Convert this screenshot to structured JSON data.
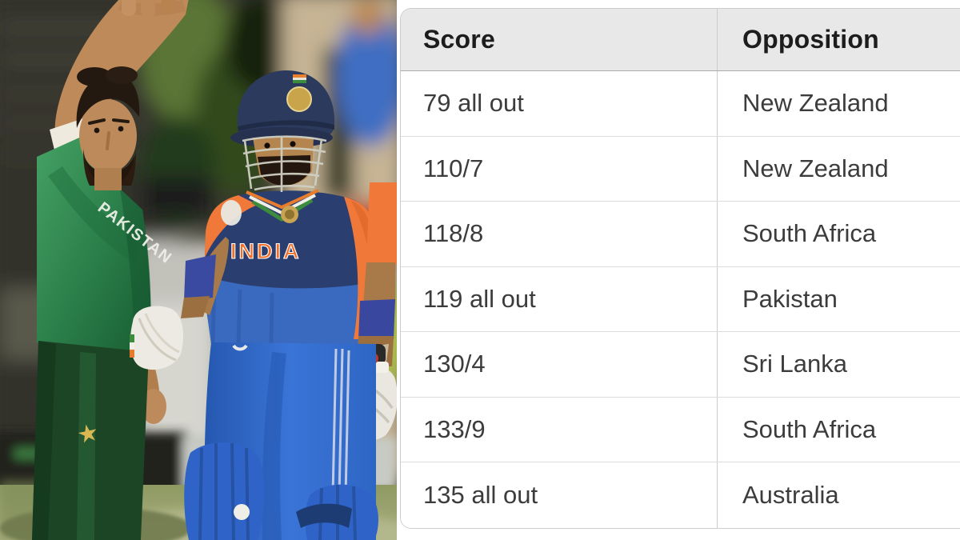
{
  "photo": {
    "alt": "Pakistan fast bowler celebrating with raised arm next to India batter in helmet during a T20 World Cup match",
    "left_player": {
      "team": "Pakistan",
      "jersey_text": "PAKISTAN"
    },
    "right_player": {
      "team": "India",
      "jersey_text": "INDIA"
    }
  },
  "table": {
    "headers": [
      {
        "label": "Score"
      },
      {
        "label": "Opposition"
      }
    ],
    "rows": [
      {
        "score": "79 all out",
        "opposition": "New Zealand"
      },
      {
        "score": "110/7",
        "opposition": "New Zealand"
      },
      {
        "score": "118/8",
        "opposition": "South Africa"
      },
      {
        "score": "119 all out",
        "opposition": "Pakistan"
      },
      {
        "score": "130/4",
        "opposition": "Sri Lanka"
      },
      {
        "score": "133/9",
        "opposition": "South Africa"
      },
      {
        "score": "135 all out",
        "opposition": "Australia"
      }
    ],
    "style": {
      "header_bg": "#e8e8e8",
      "header_text": "#1d1d1d",
      "cell_text": "#3c3c3c",
      "row_bg": "#ffffff",
      "border_color": "#cccccc",
      "header_divider": "#ababab",
      "row_divider": "#dcdcdc"
    }
  },
  "colors": {
    "pakistan_green": "#2f8a50",
    "pakistan_dark_green": "#1c4f2c",
    "india_orange": "#f0793a",
    "india_navy": "#2b3e70",
    "india_blue": "#2e66c4",
    "grass_green": "#99a36b",
    "stand_tan": "#c6b494"
  }
}
